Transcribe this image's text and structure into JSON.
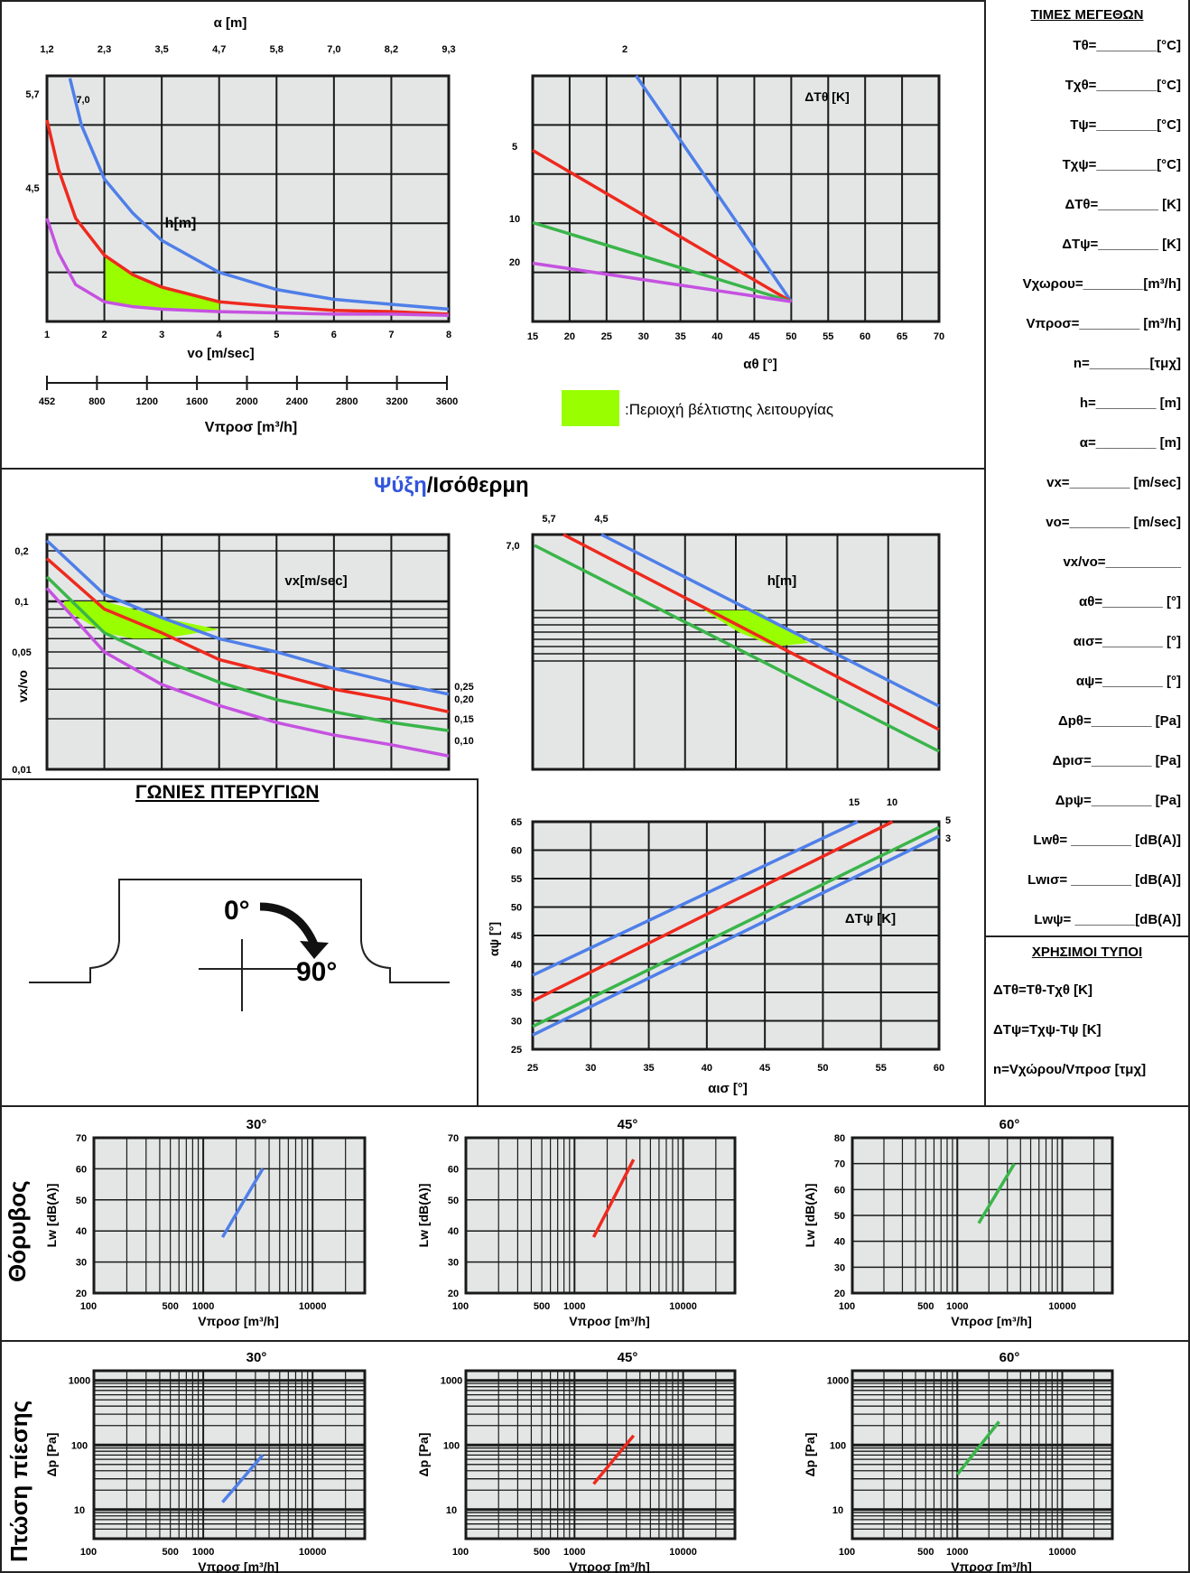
{
  "colors": {
    "blue": "#4f7fe8",
    "red": "#ee2a1e",
    "green": "#3ab54a",
    "purple": "#c552e0",
    "lime": "#99ff00",
    "plotbg": "#e4e6e6",
    "grid": "#1a1a1a"
  },
  "side_panel": {
    "title": "ΤΙΜΕΣ ΜΕΓΕΘΩΝ",
    "rows": [
      "Tθ=________[°C]",
      "Tχθ=________[°C]",
      "Tψ=________[°C]",
      "Tχψ=________[°C]",
      "ΔTθ=________ [K]",
      "ΔTψ=________ [K]",
      "Vχωρου=________[m³/h]",
      "Vπροσ=________ [m³/h]",
      "n=________[τμχ]",
      "h=________ [m]",
      "α=________ [m]",
      "vx=________ [m/sec]",
      "vo=________ [m/sec]",
      "vx/vo=__________",
      "αθ=________ [°]",
      "αισ=________ [°]",
      "αψ=________ [°]",
      "Δpθ=________ [Pa]",
      "Δpισ=________ [Pa]",
      "Δpψ=________ [Pa]",
      "Lwθ= ________ [dB(A)]",
      "Lwισ= ________ [dB(A)]",
      "Lwψ= ________[dB(A)]"
    ],
    "formulas_title": "ΧΡΗΣΙΜΟΙ ΤΥΠΟΙ",
    "formulas": [
      "ΔTθ=Tθ-Tχθ [K]",
      "ΔTψ=Tχψ-Tψ [K]",
      "n=Vχώρου/Vπροσ [τμχ]"
    ]
  },
  "section_title": {
    "part1": "Ψύξη",
    "part2": "/Ισόθερμη"
  },
  "vanes": {
    "title": "ΓΩΝΙΕΣ ΠΤΕΡΥΓΙΩΝ",
    "angle0": "0°",
    "angle90": "90°"
  },
  "legend": {
    "text": ":Περιοχή βέλτιστης λειτουργίας"
  },
  "row_labels": {
    "noise": "Θόρυβος",
    "pressure": "Πτώση πίεσης"
  },
  "chart_data": [
    {
      "id": "throw",
      "type": "line",
      "top_axis_label": "α [m]",
      "top_ticks": [
        "1,2",
        "2,3",
        "3,5",
        "4,7",
        "5,8",
        "7,0",
        "8,2",
        "9,3"
      ],
      "xlabel": "vo [m/sec]",
      "xticks": [
        "1",
        "2",
        "3",
        "4",
        "5",
        "6",
        "7",
        "8"
      ],
      "x_range": [
        1,
        8
      ],
      "second_axis_label": "Vπροσ [m³/h]",
      "second_ticks": [
        "452",
        "800",
        "1200",
        "1600",
        "2000",
        "2400",
        "2800",
        "3200",
        "3600"
      ],
      "annotation": "h[m]",
      "left_labels": [
        "5,7",
        "4,5"
      ],
      "series": [
        {
          "name": "7,0",
          "color": "blue",
          "x": [
            1.4,
            1.6,
            2,
            2.5,
            3,
            4,
            5,
            6,
            7,
            8
          ],
          "y": [
            0.99,
            0.8,
            0.58,
            0.44,
            0.33,
            0.2,
            0.13,
            0.09,
            0.07,
            0.05
          ]
        },
        {
          "name": "5,7",
          "color": "red",
          "x": [
            1,
            1.2,
            1.5,
            2,
            2.5,
            3,
            4,
            5,
            6,
            7,
            8
          ],
          "y": [
            0.82,
            0.62,
            0.42,
            0.27,
            0.19,
            0.14,
            0.08,
            0.06,
            0.045,
            0.04,
            0.03
          ]
        },
        {
          "name": "4,5",
          "color": "purple",
          "x": [
            1,
            1.2,
            1.5,
            2,
            2.5,
            3,
            4,
            5,
            6,
            7,
            8
          ],
          "y": [
            0.42,
            0.28,
            0.15,
            0.08,
            0.06,
            0.05,
            0.04,
            0.035,
            0.03,
            0.03,
            0.025
          ]
        }
      ],
      "optimal_region": {
        "x_range": [
          2,
          4
        ]
      }
    },
    {
      "id": "dT_heating",
      "type": "line",
      "xlabel": "αθ [°]",
      "xticks": [
        "15",
        "20",
        "25",
        "30",
        "35",
        "40",
        "45",
        "50",
        "55",
        "60",
        "65",
        "70"
      ],
      "x_range": [
        15,
        70
      ],
      "annotation": "ΔTθ [K]",
      "series_labels": [
        "2",
        "5",
        "10",
        "20"
      ],
      "series": [
        {
          "name": "2",
          "color": "blue",
          "x": [
            29,
            50
          ],
          "y": [
            1,
            0
          ]
        },
        {
          "name": "5",
          "color": "red",
          "x": [
            15,
            50
          ],
          "y": [
            0.67,
            0
          ]
        },
        {
          "name": "10",
          "color": "green",
          "x": [
            15,
            50
          ],
          "y": [
            0.35,
            0
          ]
        },
        {
          "name": "20",
          "color": "purple",
          "x": [
            15,
            50
          ],
          "y": [
            0.17,
            0
          ]
        }
      ]
    },
    {
      "id": "vx_vo",
      "type": "line",
      "ylabel": "vx/vo",
      "yticks": [
        "0,2",
        "0,1",
        "0,05",
        "0,01"
      ],
      "annotation": "vx[m/sec]",
      "series": [
        {
          "name": "0,25",
          "color": "blue",
          "x": [
            1,
            2,
            3,
            4,
            5,
            6,
            7,
            8
          ],
          "y": [
            0.23,
            0.11,
            0.08,
            0.06,
            0.05,
            0.04,
            0.033,
            0.028
          ]
        },
        {
          "name": "0,20",
          "color": "red",
          "x": [
            1,
            2,
            3,
            4,
            5,
            6,
            7,
            8
          ],
          "y": [
            0.18,
            0.09,
            0.065,
            0.045,
            0.037,
            0.03,
            0.026,
            0.022
          ]
        },
        {
          "name": "0,15",
          "color": "green",
          "x": [
            1,
            2,
            3,
            4,
            5,
            6,
            7,
            8
          ],
          "y": [
            0.14,
            0.065,
            0.045,
            0.033,
            0.026,
            0.022,
            0.019,
            0.017
          ]
        },
        {
          "name": "0,10",
          "color": "purple",
          "x": [
            1,
            2,
            3,
            4,
            5,
            6,
            7,
            8
          ],
          "y": [
            0.12,
            0.05,
            0.032,
            0.024,
            0.019,
            0.016,
            0.014,
            0.012
          ]
        }
      ]
    },
    {
      "id": "h_chart",
      "type": "line",
      "annotation": "h[m]",
      "top_labels": [
        "5,7",
        "4,5"
      ],
      "left_label": "7,0",
      "series": [
        {
          "name": "4,5",
          "color": "blue"
        },
        {
          "name": "5,7",
          "color": "red"
        },
        {
          "name": "7,0",
          "color": "green"
        }
      ]
    },
    {
      "id": "dT_cooling",
      "type": "line",
      "ylabel": "αψ [°]",
      "xlabel": "αισ [°]",
      "xticks": [
        "25",
        "30",
        "35",
        "40",
        "45",
        "50",
        "55",
        "60"
      ],
      "yticks": [
        "65",
        "60",
        "55",
        "50",
        "45",
        "40",
        "35",
        "30",
        "25"
      ],
      "x_range": [
        25,
        60
      ],
      "y_range": [
        25,
        65
      ],
      "annotation": "ΔTψ [K]",
      "series_labels": [
        "15",
        "10",
        "5",
        "3"
      ],
      "series": [
        {
          "name": "15",
          "color": "blue",
          "x": [
            25,
            53
          ],
          "y": [
            38,
            65
          ]
        },
        {
          "name": "10",
          "color": "red",
          "x": [
            25,
            56
          ],
          "y": [
            33.5,
            65
          ]
        },
        {
          "name": "5",
          "color": "green",
          "x": [
            25,
            60
          ],
          "y": [
            29,
            64
          ]
        },
        {
          "name": "3",
          "color": "blue",
          "x": [
            25,
            60
          ],
          "y": [
            27.5,
            62.5
          ]
        }
      ]
    },
    {
      "id": "noise_30",
      "type": "line",
      "title": "30°",
      "ylabel": "Lw [dB(A)]",
      "xlabel": "Vπροσ [m³/h]",
      "xticks": [
        "100",
        "500",
        "1000",
        "10000"
      ],
      "yticks": [
        "70",
        "60",
        "50",
        "40",
        "30",
        "20"
      ],
      "y_range": [
        20,
        70
      ],
      "series": [
        {
          "color": "blue",
          "x": [
            1500,
            3500
          ],
          "y": [
            38,
            60
          ]
        }
      ]
    },
    {
      "id": "noise_45",
      "type": "line",
      "title": "45°",
      "ylabel": "Lw [dB(A)]",
      "xlabel": "Vπροσ [m³/h]",
      "xticks": [
        "100",
        "500",
        "1000",
        "10000"
      ],
      "yticks": [
        "70",
        "60",
        "50",
        "40",
        "30",
        "20"
      ],
      "y_range": [
        20,
        70
      ],
      "series": [
        {
          "color": "red",
          "x": [
            1500,
            3500
          ],
          "y": [
            38,
            63
          ]
        }
      ]
    },
    {
      "id": "noise_60",
      "type": "line",
      "title": "60°",
      "ylabel": "Lw [dB(A)]",
      "xlabel": "Vπροσ [m³/h]",
      "xticks": [
        "100",
        "500",
        "1000",
        "10000"
      ],
      "yticks": [
        "80",
        "70",
        "60",
        "50",
        "40",
        "30",
        "20"
      ],
      "y_range": [
        20,
        80
      ],
      "series": [
        {
          "color": "green",
          "x": [
            1600,
            3500
          ],
          "y": [
            47,
            70
          ]
        }
      ]
    },
    {
      "id": "dp_30",
      "type": "line",
      "title": "30°",
      "ylabel": "Δp [Pa]",
      "xlabel": "Vπροσ [m³/h]",
      "xticks": [
        "100",
        "500",
        "1000",
        "10000"
      ],
      "yticks": [
        "1000",
        "100",
        "10"
      ],
      "series": [
        {
          "color": "blue",
          "x": [
            1500,
            3500
          ],
          "y": [
            13,
            70
          ]
        }
      ]
    },
    {
      "id": "dp_45",
      "type": "line",
      "title": "45°",
      "ylabel": "Δp [Pa]",
      "xlabel": "Vπροσ [m³/h]",
      "xticks": [
        "100",
        "500",
        "1000",
        "10000"
      ],
      "yticks": [
        "1000",
        "100",
        "10"
      ],
      "series": [
        {
          "color": "red",
          "x": [
            1500,
            3500
          ],
          "y": [
            25,
            140
          ]
        }
      ]
    },
    {
      "id": "dp_60",
      "type": "line",
      "title": "60°",
      "ylabel": "Δp [Pa]",
      "xlabel": "Vπροσ [m³/h]",
      "xticks": [
        "100",
        "500",
        "1000",
        "10000"
      ],
      "yticks": [
        "1000",
        "100",
        "10"
      ],
      "series": [
        {
          "color": "green",
          "x": [
            1000,
            2500
          ],
          "y": [
            35,
            230
          ]
        }
      ]
    }
  ]
}
